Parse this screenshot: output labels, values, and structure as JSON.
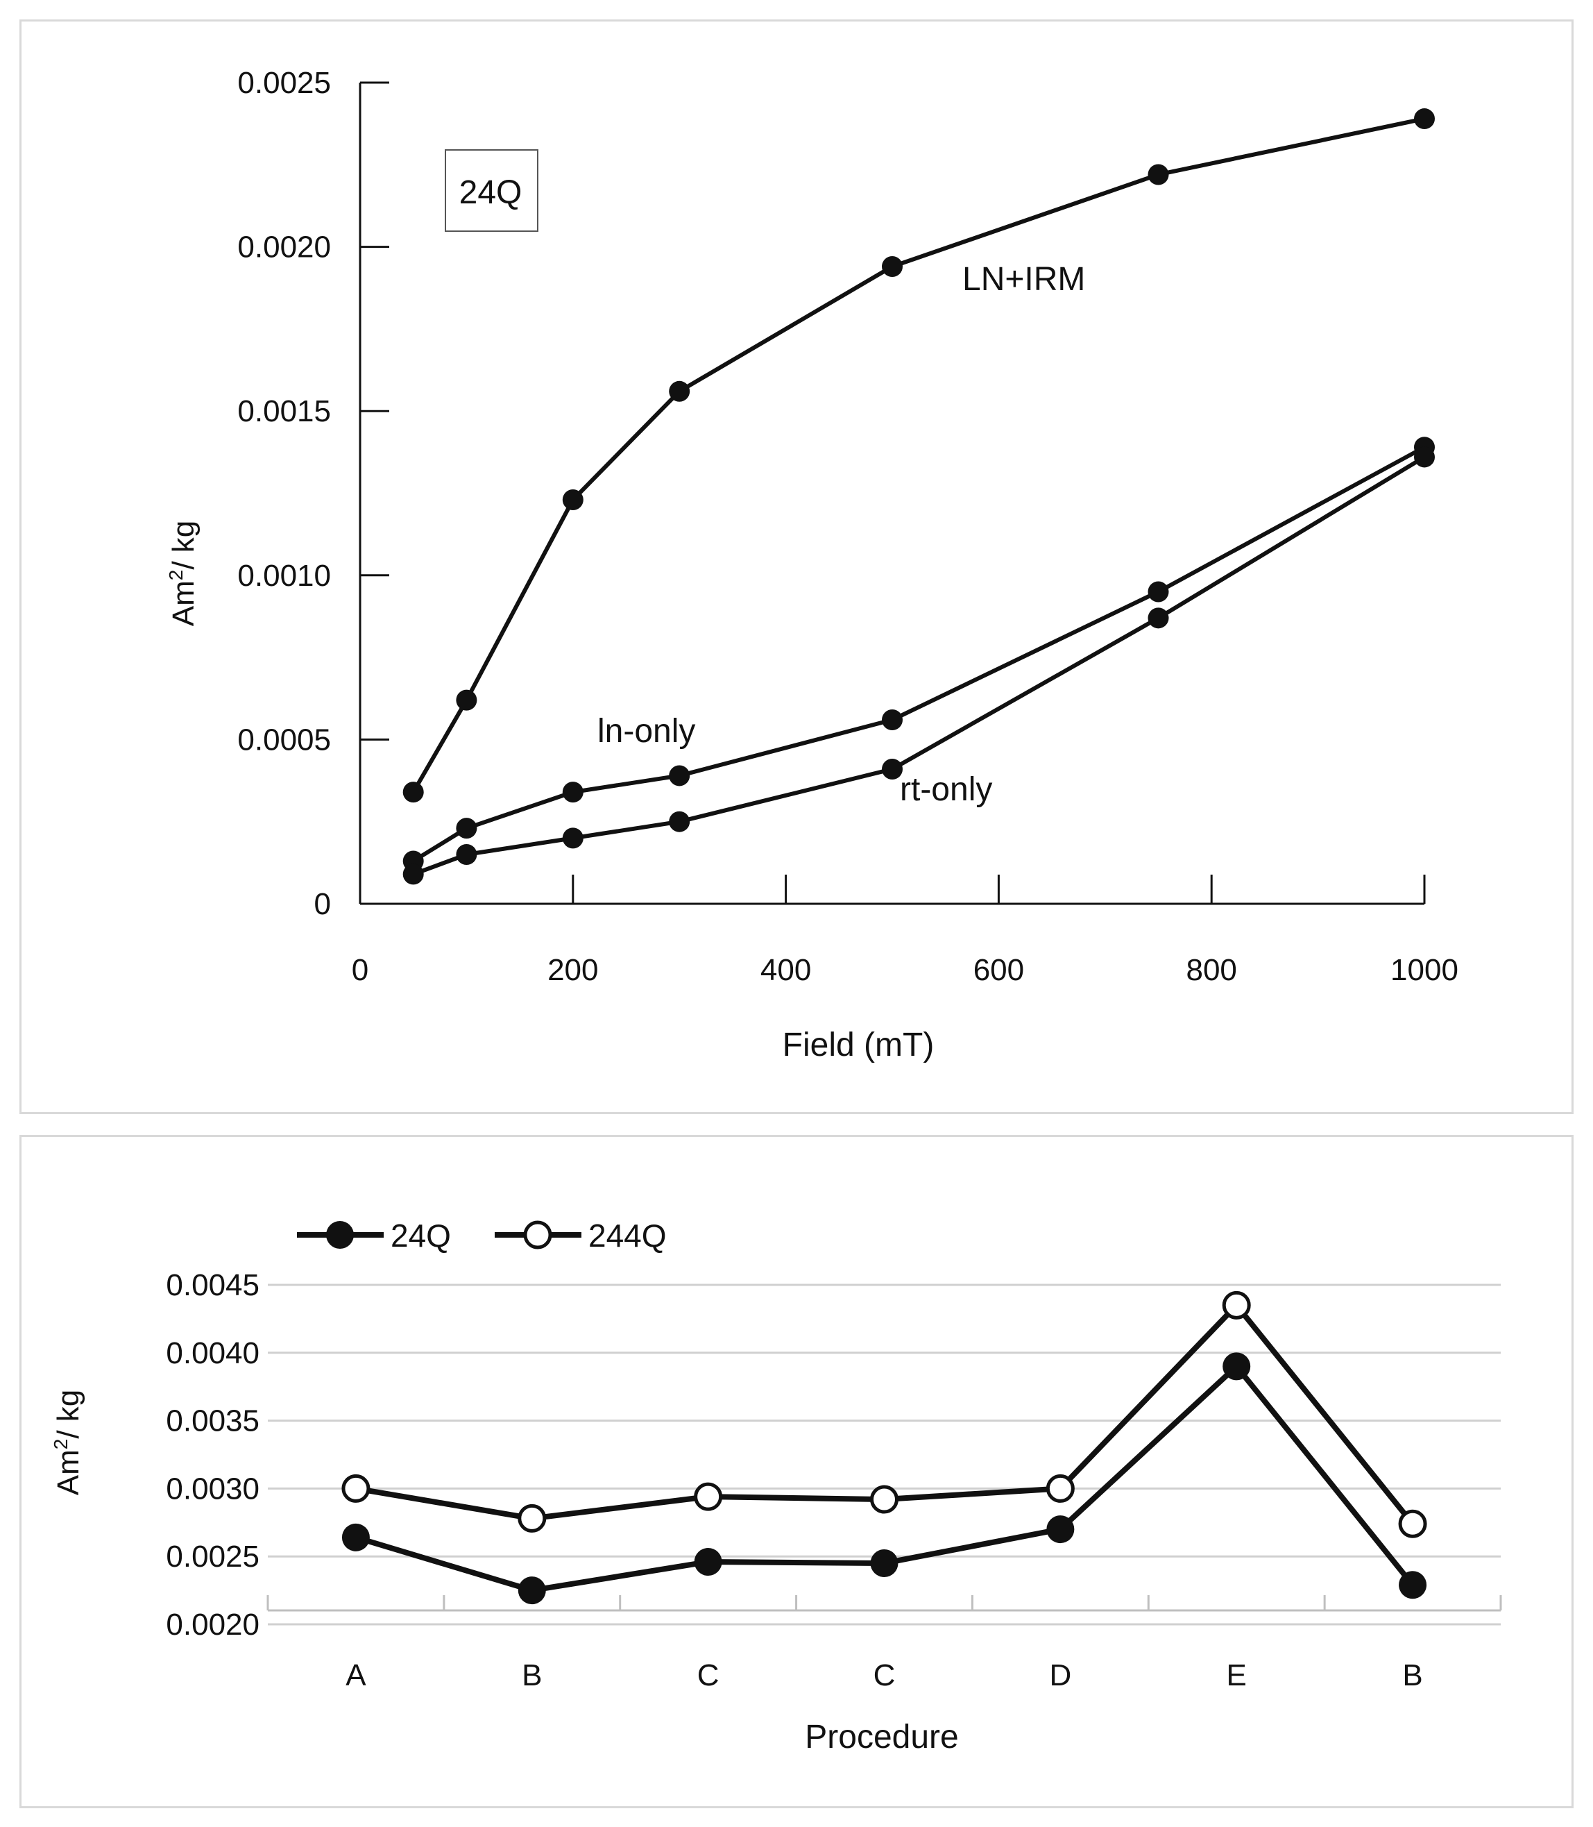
{
  "colors": {
    "line": "#111111",
    "grid": "#d0d0d0",
    "panel_border": "#d9d9d9",
    "open_marker_fill": "#ffffff"
  },
  "chart_data": [
    {
      "type": "line",
      "title": "",
      "xlabel": "Field (mT)",
      "ylabel_main": "Am",
      "ylabel_sup": "2",
      "ylabel_tail": "/ kg",
      "xlim": [
        0,
        1000
      ],
      "ylim": [
        0,
        0.0025
      ],
      "x_ticks": [
        0,
        200,
        400,
        600,
        800,
        1000
      ],
      "x_tick_labels": [
        "0",
        "200",
        "400",
        "600",
        "800",
        "1000"
      ],
      "y_ticks": [
        0,
        0.0005,
        0.001,
        0.0015,
        0.002,
        0.0025
      ],
      "y_tick_labels": [
        "0",
        "0.0005",
        "0.0010",
        "0.0015",
        "0.0020",
        "0.0025"
      ],
      "grid": false,
      "sample_label": "24Q",
      "series": [
        {
          "name": "LN+IRM",
          "marker": "filled",
          "x": [
            50,
            100,
            200,
            300,
            500,
            750,
            1000
          ],
          "y": [
            0.00034,
            0.00062,
            0.00123,
            0.00156,
            0.00194,
            0.00222,
            0.00239
          ]
        },
        {
          "name": "ln-only",
          "marker": "filled",
          "x": [
            50,
            100,
            200,
            300,
            500,
            750,
            1000
          ],
          "y": [
            0.00013,
            0.00023,
            0.00034,
            0.00039,
            0.00056,
            0.00095,
            0.00139
          ]
        },
        {
          "name": "rt-only",
          "marker": "filled",
          "x": [
            50,
            100,
            200,
            300,
            500,
            750,
            1000
          ],
          "y": [
            9e-05,
            0.00015,
            0.0002,
            0.00025,
            0.00041,
            0.00087,
            0.00136
          ]
        }
      ],
      "annotations": [
        "LN+IRM",
        "ln-only",
        "rt-only"
      ]
    },
    {
      "type": "line",
      "title": "",
      "xlabel": "Procedure",
      "ylabel_main": "Am",
      "ylabel_sup": "2",
      "ylabel_tail": "/ kg",
      "categories": [
        "A",
        "B",
        "C",
        "C",
        "D",
        "E",
        "B"
      ],
      "ylim": [
        0.002,
        0.0045
      ],
      "y_ticks": [
        0.002,
        0.0025,
        0.003,
        0.0035,
        0.004,
        0.0045
      ],
      "y_tick_labels": [
        "0.0020",
        "0.0025",
        "0.0030",
        "0.0035",
        "0.0040",
        "0.0045"
      ],
      "grid": true,
      "legend_position": "top-left",
      "series": [
        {
          "name": "24Q",
          "marker": "filled",
          "values": [
            0.00264,
            0.00225,
            0.00246,
            0.00245,
            0.0027,
            0.0039,
            0.00229
          ]
        },
        {
          "name": "244Q",
          "marker": "open",
          "values": [
            0.003,
            0.00278,
            0.00294,
            0.00292,
            0.003,
            0.00435,
            0.00274
          ]
        }
      ]
    }
  ]
}
